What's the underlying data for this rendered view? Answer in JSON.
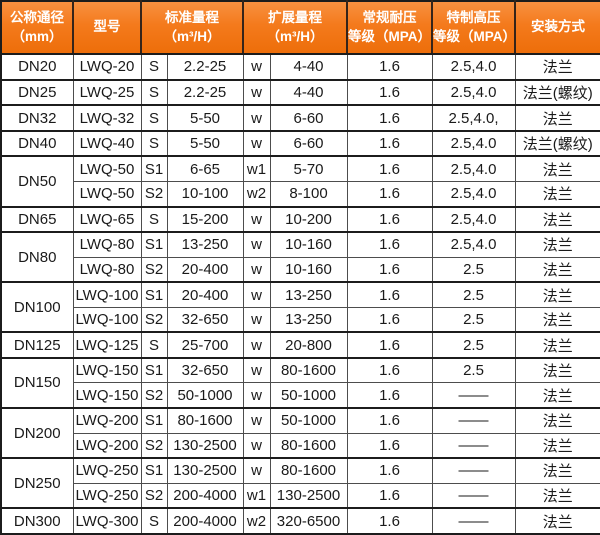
{
  "theme": {
    "header_bg_top": "#f89140",
    "header_bg_bottom": "#ed6e0a",
    "header_text_color": "#ffffff",
    "border_dark": "#1c1c1c",
    "border_light": "#4d4d4d",
    "body_text_color": "#1a1a1a"
  },
  "table": {
    "headers": {
      "nominal_diameter": "公称通径\n（mm）",
      "model": "型号",
      "standard_range": "标准量程\n（m³/H）",
      "extended_range": "扩展量程\n（m³/H）",
      "pressure_rating": "常规耐压\n等级（MPA）",
      "high_pressure_rating": "特制高压\n等级（MPA）",
      "installation": "安装方式"
    },
    "rows": [
      {
        "dn": "DN20",
        "dn_span": 1,
        "group_start": true,
        "model": "LWQ-20",
        "std_code": "S",
        "std_range": "2.2-25",
        "ext_code": "w",
        "ext_range": "4-40",
        "pressure": "1.6",
        "high_pressure": "2.5,4.0",
        "install": "法兰"
      },
      {
        "dn": "DN25",
        "dn_span": 1,
        "group_start": true,
        "model": "LWQ-25",
        "std_code": "S",
        "std_range": "2.2-25",
        "ext_code": "w",
        "ext_range": "4-40",
        "pressure": "1.6",
        "high_pressure": "2.5,4.0",
        "install": "法兰(螺纹)"
      },
      {
        "dn": "DN32",
        "dn_span": 1,
        "group_start": true,
        "model": "LWQ-32",
        "std_code": "S",
        "std_range": "5-50",
        "ext_code": "w",
        "ext_range": "6-60",
        "pressure": "1.6",
        "high_pressure": "2.5,4.0,",
        "install": "法兰"
      },
      {
        "dn": "DN40",
        "dn_span": 1,
        "group_start": true,
        "model": "LWQ-40",
        "std_code": "S",
        "std_range": "5-50",
        "ext_code": "w",
        "ext_range": "6-60",
        "pressure": "1.6",
        "high_pressure": "2.5,4.0",
        "install": "法兰(螺纹)"
      },
      {
        "dn": "DN50",
        "dn_span": 2,
        "group_start": true,
        "model": "LWQ-50",
        "std_code": "S1",
        "std_range": "6-65",
        "ext_code": "w1",
        "ext_range": "5-70",
        "pressure": "1.6",
        "high_pressure": "2.5,4.0",
        "install": "法兰"
      },
      {
        "dn": null,
        "dn_span": 1,
        "group_start": false,
        "model": "LWQ-50",
        "std_code": "S2",
        "std_range": "10-100",
        "ext_code": "w2",
        "ext_range": "8-100",
        "pressure": "1.6",
        "high_pressure": "2.5,4.0",
        "install": "法兰"
      },
      {
        "dn": "DN65",
        "dn_span": 1,
        "group_start": true,
        "model": "LWQ-65",
        "std_code": "S",
        "std_range": "15-200",
        "ext_code": "w",
        "ext_range": "10-200",
        "pressure": "1.6",
        "high_pressure": "2.5,4.0",
        "install": "法兰"
      },
      {
        "dn": "DN80",
        "dn_span": 2,
        "group_start": true,
        "model": "LWQ-80",
        "std_code": "S1",
        "std_range": "13-250",
        "ext_code": "w",
        "ext_range": "10-160",
        "pressure": "1.6",
        "high_pressure": "2.5,4.0",
        "install": "法兰"
      },
      {
        "dn": null,
        "dn_span": 1,
        "group_start": false,
        "model": "LWQ-80",
        "std_code": "S2",
        "std_range": "20-400",
        "ext_code": "w",
        "ext_range": "10-160",
        "pressure": "1.6",
        "high_pressure": "2.5",
        "install": "法兰"
      },
      {
        "dn": "DN100",
        "dn_span": 2,
        "group_start": true,
        "model": "LWQ-100",
        "std_code": "S1",
        "std_range": "20-400",
        "ext_code": "w",
        "ext_range": "13-250",
        "pressure": "1.6",
        "high_pressure": "2.5",
        "install": "法兰"
      },
      {
        "dn": null,
        "dn_span": 1,
        "group_start": false,
        "model": "LWQ-100",
        "std_code": "S2",
        "std_range": "32-650",
        "ext_code": "w",
        "ext_range": "13-250",
        "pressure": "1.6",
        "high_pressure": "2.5",
        "install": "法兰"
      },
      {
        "dn": "DN125",
        "dn_span": 1,
        "group_start": true,
        "model": "LWQ-125",
        "std_code": "S",
        "std_range": "25-700",
        "ext_code": "w",
        "ext_range": "20-800",
        "pressure": "1.6",
        "high_pressure": "2.5",
        "install": "法兰"
      },
      {
        "dn": "DN150",
        "dn_span": 2,
        "group_start": true,
        "model": "LWQ-150",
        "std_code": "S1",
        "std_range": "32-650",
        "ext_code": "w",
        "ext_range": "80-1600",
        "pressure": "1.6",
        "high_pressure": "2.5",
        "install": "法兰"
      },
      {
        "dn": null,
        "dn_span": 1,
        "group_start": false,
        "model": "LWQ-150",
        "std_code": "S2",
        "std_range": "50-1000",
        "ext_code": "w",
        "ext_range": "50-1000",
        "pressure": "1.6",
        "high_pressure": "——",
        "install": "法兰"
      },
      {
        "dn": "DN200",
        "dn_span": 2,
        "group_start": true,
        "model": "LWQ-200",
        "std_code": "S1",
        "std_range": "80-1600",
        "ext_code": "w",
        "ext_range": "50-1000",
        "pressure": "1.6",
        "high_pressure": "——",
        "install": "法兰"
      },
      {
        "dn": null,
        "dn_span": 1,
        "group_start": false,
        "model": "LWQ-200",
        "std_code": "S2",
        "std_range": "130-2500",
        "ext_code": "w",
        "ext_range": "80-1600",
        "pressure": "1.6",
        "high_pressure": "——",
        "install": "法兰"
      },
      {
        "dn": "DN250",
        "dn_span": 2,
        "group_start": true,
        "model": "LWQ-250",
        "std_code": "S1",
        "std_range": "130-2500",
        "ext_code": "w",
        "ext_range": "80-1600",
        "pressure": "1.6",
        "high_pressure": "——",
        "install": "法兰"
      },
      {
        "dn": null,
        "dn_span": 1,
        "group_start": false,
        "model": "LWQ-250",
        "std_code": "S2",
        "std_range": "200-4000",
        "ext_code": "w1",
        "ext_range": "130-2500",
        "pressure": "1.6",
        "high_pressure": "——",
        "install": "法兰"
      },
      {
        "dn": "DN300",
        "dn_span": 1,
        "group_start": true,
        "model": "LWQ-300",
        "std_code": "S",
        "std_range": "200-4000",
        "ext_code": "w2",
        "ext_range": "320-6500",
        "pressure": "1.6",
        "high_pressure": "——",
        "install": "法兰"
      }
    ]
  }
}
